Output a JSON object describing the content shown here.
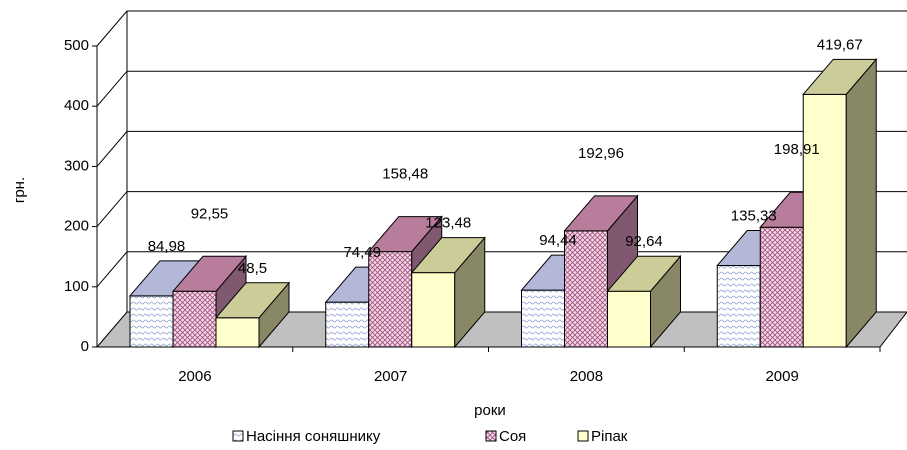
{
  "chart_data": {
    "type": "bar3d",
    "categories": [
      "2006",
      "2007",
      "2008",
      "2009"
    ],
    "series": [
      {
        "name": "Насіння соняшнику",
        "color": "#dde4f4",
        "values": [
          84.98,
          74.49,
          94.44,
          135.33
        ],
        "value_labels": [
          "84,98",
          "74,49",
          "94,44",
          "135,33"
        ]
      },
      {
        "name": "Соя",
        "color": "#f0c8dc",
        "values": [
          92.55,
          158.48,
          192.96,
          198.91
        ],
        "value_labels": [
          "92,55",
          "158,48",
          "192,96",
          "198,91"
        ]
      },
      {
        "name": "Ріпак",
        "color": "#ffffcc",
        "values": [
          48.5,
          123.48,
          92.64,
          419.67
        ],
        "value_labels": [
          "48,5",
          "123,48",
          "92,64",
          "419,67"
        ]
      }
    ],
    "ylim": [
      0,
      500
    ],
    "yticks": [
      0,
      100,
      200,
      300,
      400,
      500
    ],
    "xlabel": "роки",
    "ylabel": "грн.",
    "grid": true,
    "legend": "bottom"
  }
}
